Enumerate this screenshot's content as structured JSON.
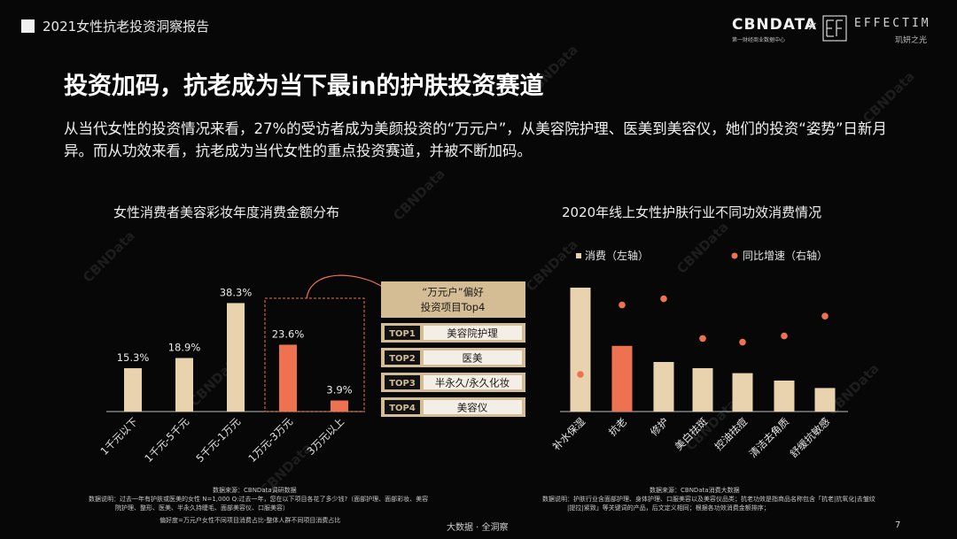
{
  "header": {
    "title": "2021女性抗老投资洞察报告",
    "logo_cbn": "CBNDATA",
    "logo_cbn_sub": "第一财经商业数据中心",
    "logo_separator": "×",
    "logo_partner": "EFFECTIM",
    "logo_partner_sub": "玑妍之光"
  },
  "main_title": "投资加码，抗老成为当下最in的护肤投资赛道",
  "body_text": "从当代女性的投资情况来看，27%的受访者成为美颜投资的“万元户”，从美容院护理、医美到美容仪，她们的投资“姿势”日新月异。而从功效来看，抗老成为当代女性的重点投资赛道，并被不断加码。",
  "watermark": "CBNData",
  "left_panel": {
    "source_label": "数据来源：CBNData调研数据",
    "note_line1": "数据说明：过去一年有护肤或医美的女性 N=1,000 Q:过去一年，您在以下项目各花了多少钱?（面部护理、面部彩妆、美容",
    "note_line2": "院护理、整形、医美、半永久持睫毛、面部美容仪、口服美容）",
    "note_line3": "偏好度=万元户女性不同项目消费占比-整体人群不同项目消费占比"
  },
  "right_panel": {
    "source_label": "数据来源：CBNData消费大数据",
    "note_line1": "数据说明：护肤行业含面部护理、身体护理、口服美容以及美容仪品类；抗老功效是指商品名称包含「抗老|抗氧化|去皱纹",
    "note_line2": "|提拉|紧致」等关键词的产品，后文定义相同；根据各功效消费金额排序；"
  },
  "top4": {
    "box_title": "“万元户”偏好\n投资项目Top4",
    "items": [
      {
        "rank": "TOP1",
        "label": "美容院护理"
      },
      {
        "rank": "TOP2",
        "label": "医美"
      },
      {
        "rank": "TOP3",
        "label": "半永久/永久化妆"
      },
      {
        "rank": "TOP4",
        "label": "美容仪"
      }
    ]
  },
  "footer": {
    "center": "大数据 · 全洞察",
    "page": "7"
  },
  "colors": {
    "gold_bar": "#e8d3ae",
    "orange": "#ee7250",
    "gold_box": "#d4bc95",
    "background": "#070707"
  },
  "chart_data": [
    {
      "type": "bar",
      "title": "女性消费者美容彩妆年度消费金额分布",
      "categories": [
        "1千元以下",
        "1千元-5千元",
        "5千元-1万元",
        "1万元-3万元",
        "3万元以上"
      ],
      "values": [
        15.3,
        18.9,
        38.3,
        23.6,
        3.9
      ],
      "value_labels": [
        "15.3%",
        "18.9%",
        "38.3%",
        "23.6%",
        "3.9%"
      ],
      "highlight_indices": [
        3,
        4
      ],
      "ylim": [
        0,
        40
      ],
      "grid": false,
      "colors": [
        "#e8d3ae",
        "#e8d3ae",
        "#e8d3ae",
        "#ee7250",
        "#ee7250"
      ]
    },
    {
      "type": "bar",
      "title": "2020年线上女性护肤行业不同功效消费情况",
      "categories": [
        "补水保湿",
        "抗老",
        "修护",
        "美白祛斑",
        "控油祛痘",
        "清洁去角质",
        "舒缓抗敏感"
      ],
      "series": [
        {
          "name": "消费（左轴）",
          "kind": "bar",
          "values": [
            100,
            53,
            40,
            35,
            31,
            25,
            19
          ]
        },
        {
          "name": "同比增速（右轴）",
          "kind": "scatter",
          "values": [
            30,
            86,
            91,
            59,
            56,
            61,
            77
          ]
        }
      ],
      "bar_colors": [
        "#e8d3ae",
        "#ee7250",
        "#e8d3ae",
        "#e8d3ae",
        "#e8d3ae",
        "#e8d3ae",
        "#e8d3ae"
      ],
      "ylim": [
        0,
        100
      ],
      "y2lim": [
        0,
        100
      ],
      "legend_position": "top",
      "grid": false
    }
  ]
}
